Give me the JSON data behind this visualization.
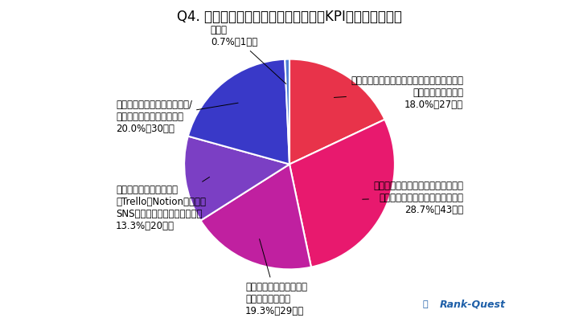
{
  "title": "Q4. 運用開始時に最も重視した目標（KPI）は何ですか？",
  "slices": [
    {
      "label_lines": [
        "週や月ごとのコンテンツカレンダーを作り、",
        "計画的に進めている",
        "18.0%（27名）"
      ],
      "value": 18.0,
      "color": "#E8334A"
    },
    {
      "label_lines": [
        "大まかな計画はあるが、時事ネタや",
        "社内状況によって柔軟に変更する",
        "28.7%（43名）"
      ],
      "value": 28.7,
      "color": "#E8196E"
    },
    {
      "label_lines": [
        "思いついたタイミングで",
        "随時投稿している",
        "19.3%（29名）"
      ],
      "value": 19.3,
      "color": "#C020A0"
    },
    {
      "label_lines": [
        "スケジュール管理ツール",
        "（Trello、Notionなど）や",
        "SNS管理ツールを活用している",
        "13.3%（20名）"
      ],
      "value": 13.3,
      "color": "#7B3FC4"
    },
    {
      "label_lines": [
        "特に決まった管理方法はない/",
        "担当者の裁量に任せている",
        "20.0%（30名）"
      ],
      "value": 20.0,
      "color": "#3939C8"
    },
    {
      "label_lines": [
        "その他",
        "0.7%（1名）"
      ],
      "value": 0.7,
      "color": "#4D7FD4"
    }
  ],
  "background_color": "#FFFFFF",
  "title_fontsize": 12,
  "label_fontsize": 8.5,
  "watermark": "Rank-Quest"
}
